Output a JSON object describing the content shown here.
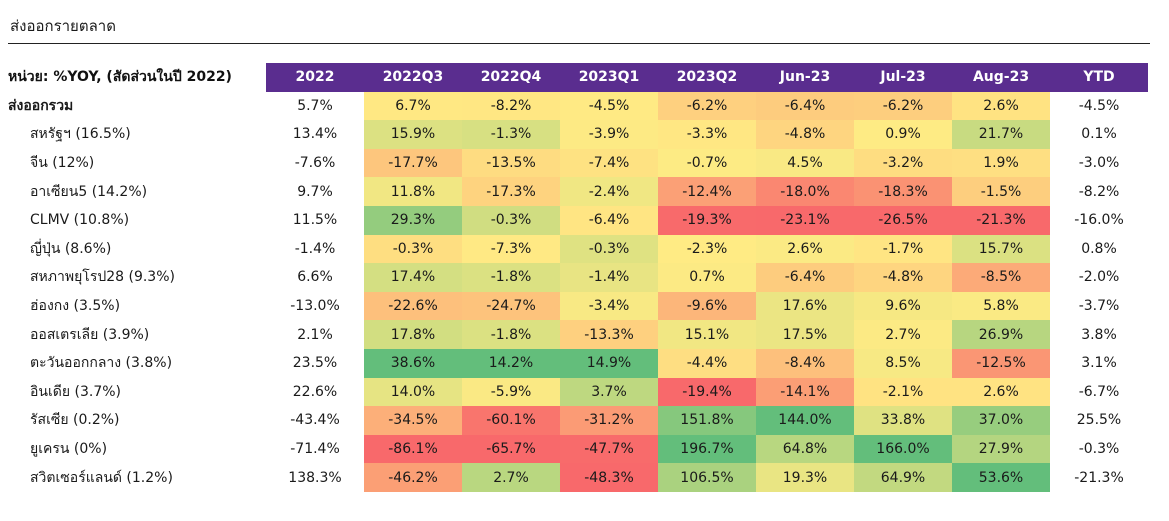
{
  "page": {
    "title": "ส่งออกรายตลาด"
  },
  "table": {
    "unit_label": "หน่วย: %YOY, (สัดส่วนในปี 2022)",
    "columns": [
      "2022",
      "2022Q3",
      "2022Q4",
      "2023Q1",
      "2023Q2",
      "Jun-23",
      "Jul-23",
      "Aug-23",
      "YTD"
    ],
    "header_color": "#5a2d8f",
    "heatmap_colors": {
      "high": "#63be7b",
      "mid": "#ffeb84",
      "low": "#f8696b"
    },
    "rows": [
      {
        "label": "ส่งออกรวม",
        "values": [
          "5.7%",
          "6.7%",
          "-8.2%",
          "-4.5%",
          "-6.2%",
          "-6.4%",
          "-6.2%",
          "2.6%",
          "-4.5%"
        ]
      },
      {
        "label": "สหรัฐฯ (16.5%)",
        "values": [
          "13.4%",
          "15.9%",
          "-1.3%",
          "-3.9%",
          "-3.3%",
          "-4.8%",
          "0.9%",
          "21.7%",
          "0.1%"
        ]
      },
      {
        "label": "จีน (12%)",
        "values": [
          "-7.6%",
          "-17.7%",
          "-13.5%",
          "-7.4%",
          "-0.7%",
          "4.5%",
          "-3.2%",
          "1.9%",
          "-3.0%"
        ]
      },
      {
        "label": "อาเซียน5 (14.2%)",
        "values": [
          "9.7%",
          "11.8%",
          "-17.3%",
          "-2.4%",
          "-12.4%",
          "-18.0%",
          "-18.3%",
          "-1.5%",
          "-8.2%"
        ]
      },
      {
        "label": "CLMV (10.8%)",
        "values": [
          "11.5%",
          "29.3%",
          "-0.3%",
          "-6.4%",
          "-19.3%",
          "-23.1%",
          "-26.5%",
          "-21.3%",
          "-16.0%"
        ]
      },
      {
        "label": "ญี่ปุ่น (8.6%)",
        "values": [
          "-1.4%",
          "-0.3%",
          "-7.3%",
          "-0.3%",
          "-2.3%",
          "2.6%",
          "-1.7%",
          "15.7%",
          "0.8%"
        ]
      },
      {
        "label": "สหภาพยุโรป28 (9.3%)",
        "values": [
          "6.6%",
          "17.4%",
          "-1.8%",
          "-1.4%",
          "0.7%",
          "-6.4%",
          "-4.8%",
          "-8.5%",
          "-2.0%"
        ]
      },
      {
        "label": "ฮ่องกง (3.5%)",
        "values": [
          "-13.0%",
          "-22.6%",
          "-24.7%",
          "-3.4%",
          "-9.6%",
          "17.6%",
          "9.6%",
          "5.8%",
          "-3.7%"
        ]
      },
      {
        "label": "ออสเตรเลีย (3.9%)",
        "values": [
          "2.1%",
          "17.8%",
          "-1.8%",
          "-13.3%",
          "15.1%",
          "17.5%",
          "2.7%",
          "26.9%",
          "3.8%"
        ]
      },
      {
        "label": "ตะวันออกกลาง (3.8%)",
        "values": [
          "23.5%",
          "38.6%",
          "14.2%",
          "14.9%",
          "-4.4%",
          "-8.4%",
          "8.5%",
          "-12.5%",
          "3.1%"
        ]
      },
      {
        "label": "อินเดีย (3.7%)",
        "values": [
          "22.6%",
          "14.0%",
          "-5.9%",
          "3.7%",
          "-19.4%",
          "-14.1%",
          "-2.1%",
          "2.6%",
          "-6.7%"
        ]
      },
      {
        "label": "รัสเซีย (0.2%)",
        "values": [
          "-43.4%",
          "-34.5%",
          "-60.1%",
          "-31.2%",
          "151.8%",
          "144.0%",
          "33.8%",
          "37.0%",
          "25.5%"
        ]
      },
      {
        "label": "ยูเครน (0%)",
        "values": [
          "-71.4%",
          "-86.1%",
          "-65.7%",
          "-47.7%",
          "196.7%",
          "64.8%",
          "166.0%",
          "27.9%",
          "-0.3%"
        ]
      },
      {
        "label": "สวิตเซอร์แลนด์ (1.2%)",
        "values": [
          "138.3%",
          "-46.2%",
          "2.7%",
          "-48.3%",
          "106.5%",
          "19.3%",
          "64.9%",
          "53.6%",
          "-21.3%"
        ]
      }
    ]
  }
}
